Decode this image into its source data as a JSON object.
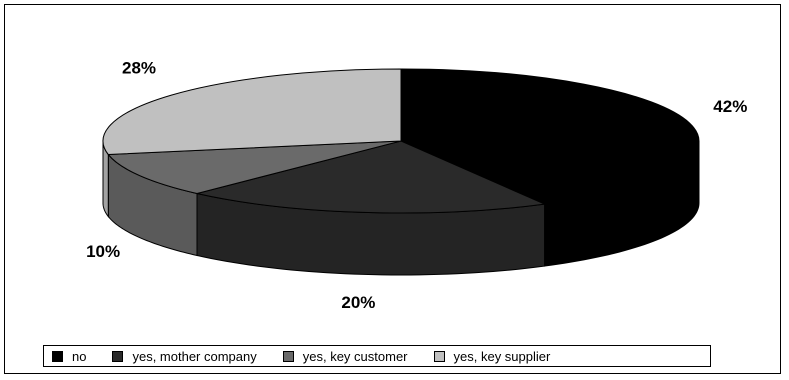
{
  "chart_data": {
    "type": "pie",
    "title": "",
    "categories": [
      "no",
      "yes, mother company",
      "yes, key customer",
      "yes, key supplier"
    ],
    "values": [
      42,
      20,
      10,
      28
    ],
    "data_labels": [
      "42%",
      "20%",
      "10%",
      "28%"
    ],
    "colors": [
      "#000000",
      "#2a2a2a",
      "#6a6a6a",
      "#c0c0c0"
    ],
    "legend": {
      "placement": "bottom",
      "items": [
        "no",
        "yes, mother company",
        "yes, key customer",
        "yes, key supplier"
      ]
    },
    "style": "3d"
  }
}
